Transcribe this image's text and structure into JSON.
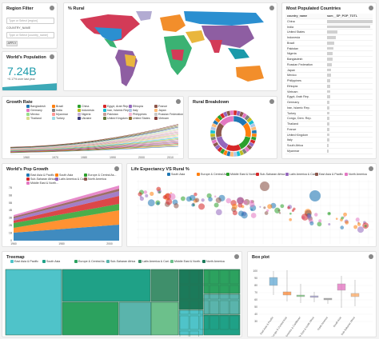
{
  "region_filter": {
    "title": "Region Filter",
    "country_label": "COUNTRY_NAME",
    "search_placeholder": "Type or Select [region]",
    "country_placeholder": "Type or Select [country_name]",
    "apply_label": "APPLY"
  },
  "population": {
    "title": "World's Population",
    "value": "7.24B",
    "subtitle": "+0.17% over last year"
  },
  "rural_map": {
    "title": "% Rural",
    "colors": [
      "#2b8fd0",
      "#d33b57",
      "#3bb273",
      "#e9b63d",
      "#8e5ea2",
      "#f28e2b",
      "#1b9aaa",
      "#b2abd2"
    ]
  },
  "populated": {
    "title": "Most Populated Countries",
    "col_country": "country_name",
    "col_value": "sum__SP_POP_TOTL",
    "rows": [
      {
        "name": "China",
        "v": 1.36
      },
      {
        "name": "India",
        "v": 1.29
      },
      {
        "name": "United States",
        "v": 0.319
      },
      {
        "name": "Indonesia",
        "v": 0.255
      },
      {
        "name": "Brazil",
        "v": 0.206
      },
      {
        "name": "Pakistan",
        "v": 0.185
      },
      {
        "name": "Nigeria",
        "v": 0.178
      },
      {
        "name": "Bangladesh",
        "v": 0.159
      },
      {
        "name": "Russian Federation",
        "v": 0.144
      },
      {
        "name": "Japan",
        "v": 0.127
      },
      {
        "name": "Mexico",
        "v": 0.125
      },
      {
        "name": "Philippines",
        "v": 0.099
      },
      {
        "name": "Ethiopia",
        "v": 0.097
      },
      {
        "name": "Vietnam",
        "v": 0.091
      },
      {
        "name": "Egypt, Arab Rep.",
        "v": 0.089
      },
      {
        "name": "Germany",
        "v": 0.081
      },
      {
        "name": "Iran, Islamic Rep.",
        "v": 0.078
      },
      {
        "name": "Turkey",
        "v": 0.076
      },
      {
        "name": "Congo, Dem. Rep.",
        "v": 0.075
      },
      {
        "name": "Thailand",
        "v": 0.068
      },
      {
        "name": "France",
        "v": 0.066
      },
      {
        "name": "United Kingdom",
        "v": 0.065
      },
      {
        "name": "Italy",
        "v": 0.061
      },
      {
        "name": "South Africa",
        "v": 0.054
      },
      {
        "name": "Myanmar",
        "v": 0.053
      }
    ]
  },
  "growth": {
    "title": "Growth Rate",
    "legend": [
      {
        "name": "Bangladesh",
        "color": "#1f77b4"
      },
      {
        "name": "Brazil",
        "color": "#ff7f0e"
      },
      {
        "name": "China",
        "color": "#2ca02c"
      },
      {
        "name": "Egypt, Arab Rep.",
        "color": "#d62728"
      },
      {
        "name": "Ethiopia",
        "color": "#9467bd"
      },
      {
        "name": "France",
        "color": "#8c564b"
      },
      {
        "name": "Germany",
        "color": "#e377c2"
      },
      {
        "name": "India",
        "color": "#7f7f7f"
      },
      {
        "name": "Indonesia",
        "color": "#bcbd22"
      },
      {
        "name": "Iran, Islamic Rep.",
        "color": "#17becf"
      },
      {
        "name": "Italy",
        "color": "#aec7e8"
      },
      {
        "name": "Japan",
        "color": "#ffbb78"
      },
      {
        "name": "Mexico",
        "color": "#98df8a"
      },
      {
        "name": "Myanmar",
        "color": "#ff9896"
      },
      {
        "name": "Nigeria",
        "color": "#c5b0d5"
      },
      {
        "name": "Pakistan",
        "color": "#c49c94"
      },
      {
        "name": "Philippines",
        "color": "#f7b6d2"
      },
      {
        "name": "Russian Federation",
        "color": "#c7c7c7"
      },
      {
        "name": "Thailand",
        "color": "#dbdb8d"
      },
      {
        "name": "Turkey",
        "color": "#9edae5"
      },
      {
        "name": "Ukraine",
        "color": "#393b79"
      },
      {
        "name": "United Kingdom",
        "color": "#637939"
      },
      {
        "name": "United States",
        "color": "#8c6d31"
      },
      {
        "name": "Vietnam",
        "color": "#843c39"
      }
    ],
    "x_ticks": [
      "1960",
      "1970",
      "1980",
      "1990",
      "2000",
      "2010"
    ]
  },
  "rural_breakdown": {
    "title": "Rural Breakdown"
  },
  "pop_growth": {
    "title": "World's Pop Growth",
    "legend": [
      {
        "name": "East Asia & Pacific",
        "color": "#1f77b4"
      },
      {
        "name": "South Asia",
        "color": "#ff7f0e"
      },
      {
        "name": "Europe & Central As...",
        "color": "#2ca02c"
      },
      {
        "name": "Sub-Saharan Africa",
        "color": "#d62728"
      },
      {
        "name": "Latin America & Cari...",
        "color": "#9467bd"
      },
      {
        "name": "North America",
        "color": "#8c564b"
      },
      {
        "name": "Middle East & North...",
        "color": "#e377c2"
      }
    ],
    "y_ticks": [
      "7B",
      "6B",
      "5B",
      "4B",
      "3B",
      "2B",
      "1B",
      "0"
    ],
    "x_ticks": [
      "1960",
      "1980",
      "2000"
    ]
  },
  "life_exp": {
    "title": "Life Expectancy VS Rural %",
    "legend": [
      {
        "name": "South Asia",
        "color": "#1f77b4"
      },
      {
        "name": "Europe & Central As...",
        "color": "#ff7f0e"
      },
      {
        "name": "Middle East & North...",
        "color": "#2ca02c"
      },
      {
        "name": "Sub-Saharan Africa",
        "color": "#d62728"
      },
      {
        "name": "Latin America & Cari...",
        "color": "#9467bd"
      },
      {
        "name": "East Asia & Pacific",
        "color": "#8c564b"
      },
      {
        "name": "North America",
        "color": "#e377c2"
      }
    ]
  },
  "treemap": {
    "title": "Treemap",
    "legend": [
      {
        "name": "East Asia & Pacific",
        "color": "#4fc3c9"
      },
      {
        "name": "South Asia",
        "color": "#1fa187"
      },
      {
        "name": "Europe & Central As...",
        "color": "#2ca25f"
      },
      {
        "name": "Sub-Saharan Africa",
        "color": "#5ab4ac"
      },
      {
        "name": "Latin America & Cari...",
        "color": "#3f8f6b"
      },
      {
        "name": "Middle East & North...",
        "color": "#6cc08b"
      },
      {
        "name": "North America",
        "color": "#1b7a5a"
      }
    ]
  },
  "boxplot": {
    "title": "Box plot",
    "y_ticks": [
      "100",
      "90",
      "80",
      "70",
      "60",
      "50",
      "40",
      "30"
    ],
    "categories": [
      "East Asia & Pacific",
      "Europe & Central Asia",
      "Latin America & Caribbean",
      "Middle East & North Africa",
      "North America",
      "South Asia",
      "Sub-Saharan Africa"
    ],
    "colors": [
      "#6baed6",
      "#fd8d3c",
      "#74c476",
      "#9e9ac8",
      "#969696",
      "#e377c2",
      "#fdae6b"
    ]
  }
}
